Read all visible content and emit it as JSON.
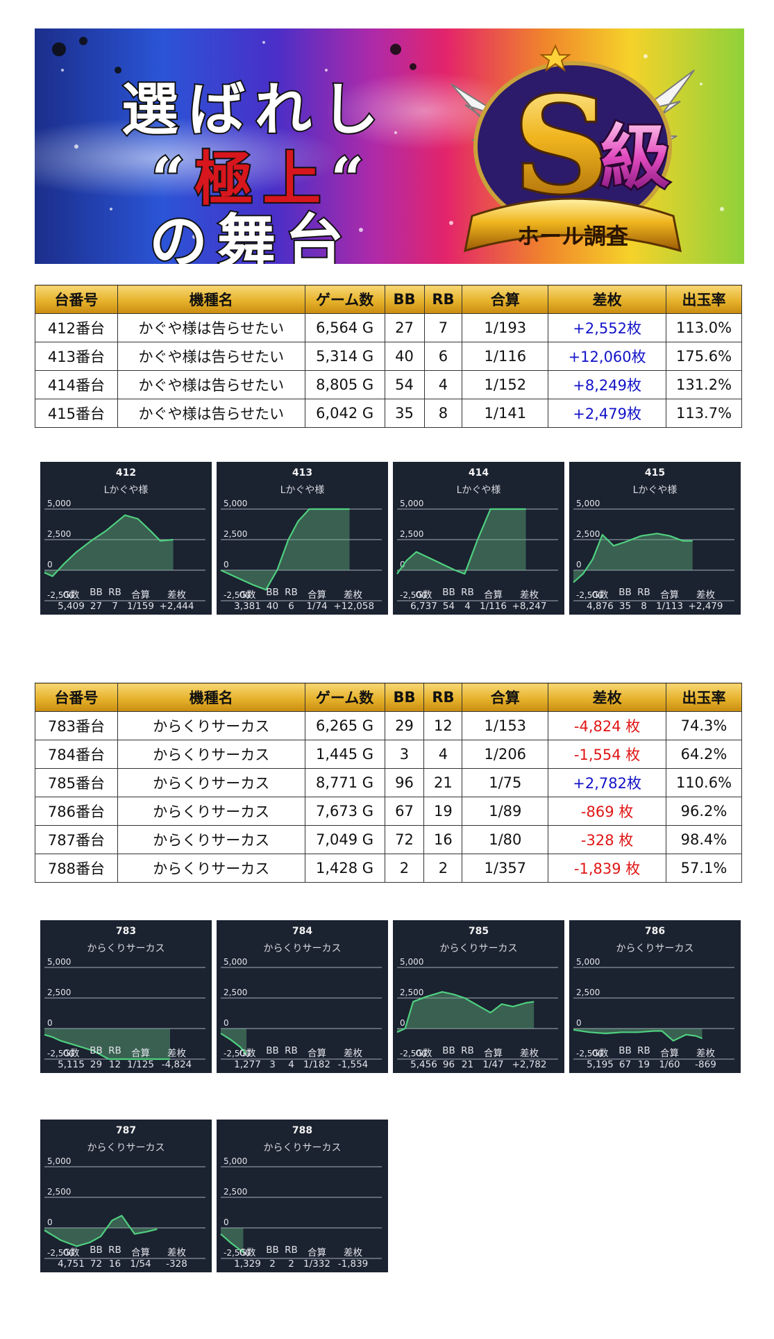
{
  "banner": {
    "line1": "選ばれし",
    "line2_open": "“",
    "line2_main": "極上",
    "line2_close": "“",
    "line3": "の舞台",
    "badge_letters": "S級",
    "badge_ribbon": "ホール調査"
  },
  "table_headers": [
    "台番号",
    "機種名",
    "ゲーム数",
    "BB",
    "RB",
    "合算",
    "差枚",
    "出玉率"
  ],
  "table1": [
    {
      "no": "412番台",
      "model": "かぐや様は告らせたい",
      "games": "6,564 G",
      "bb": "27",
      "rb": "7",
      "total": "1/193",
      "diff": "+2,552枚",
      "sign": "pos",
      "rate": "113.0%"
    },
    {
      "no": "413番台",
      "model": "かぐや様は告らせたい",
      "games": "5,314 G",
      "bb": "40",
      "rb": "6",
      "total": "1/116",
      "diff": "+12,060枚",
      "sign": "pos",
      "rate": "175.6%"
    },
    {
      "no": "414番台",
      "model": "かぐや様は告らせたい",
      "games": "8,805 G",
      "bb": "54",
      "rb": "4",
      "total": "1/152",
      "diff": "+8,249枚",
      "sign": "pos",
      "rate": "131.2%"
    },
    {
      "no": "415番台",
      "model": "かぐや様は告らせたい",
      "games": "6,042 G",
      "bb": "35",
      "rb": "8",
      "total": "1/141",
      "diff": "+2,479枚",
      "sign": "pos",
      "rate": "113.7%"
    }
  ],
  "table2": [
    {
      "no": "783番台",
      "model": "からくりサーカス",
      "games": "6,265 G",
      "bb": "29",
      "rb": "12",
      "total": "1/153",
      "diff": "-4,824 枚",
      "sign": "neg",
      "rate": "74.3%"
    },
    {
      "no": "784番台",
      "model": "からくりサーカス",
      "games": "1,445 G",
      "bb": "3",
      "rb": "4",
      "total": "1/206",
      "diff": "-1,554 枚",
      "sign": "neg",
      "rate": "64.2%"
    },
    {
      "no": "785番台",
      "model": "からくりサーカス",
      "games": "8,771 G",
      "bb": "96",
      "rb": "21",
      "total": "1/75",
      "diff": "+2,782枚",
      "sign": "pos",
      "rate": "110.6%"
    },
    {
      "no": "786番台",
      "model": "からくりサーカス",
      "games": "7,673 G",
      "bb": "67",
      "rb": "19",
      "total": "1/89",
      "diff": "-869 枚",
      "sign": "neg",
      "rate": "96.2%"
    },
    {
      "no": "787番台",
      "model": "からくりサーカス",
      "games": "7,049 G",
      "bb": "72",
      "rb": "16",
      "total": "1/80",
      "diff": "-328 枚",
      "sign": "neg",
      "rate": "98.4%"
    },
    {
      "no": "788番台",
      "model": "からくりサーカス",
      "games": "1,428 G",
      "bb": "2",
      "rb": "2",
      "total": "1/357",
      "diff": "-1,839 枚",
      "sign": "neg",
      "rate": "57.1%"
    }
  ],
  "stat_labels": [
    "G数",
    "BB",
    "RB",
    "合算",
    "差枚"
  ],
  "chart_data": [
    {
      "type": "area",
      "title": "412",
      "subtitle": "Lかぐや様",
      "ylim": [
        -2500,
        5000
      ],
      "y_ticks": [
        "5,000",
        "2,500",
        "0",
        "-2,500"
      ],
      "x": [
        0,
        0.05,
        0.12,
        0.2,
        0.3,
        0.38,
        0.5,
        0.58,
        0.66,
        0.72,
        0.8
      ],
      "y": [
        -200,
        -500,
        500,
        1500,
        2500,
        3200,
        4500,
        4200,
        3200,
        2400,
        2500
      ],
      "stats": [
        "5,409",
        "27",
        "7",
        "1/159",
        "+2,444"
      ]
    },
    {
      "type": "area",
      "title": "413",
      "subtitle": "Lかぐや様",
      "ylim": [
        -2500,
        5000
      ],
      "y_ticks": [
        "5,000",
        "2,500",
        "0",
        "-2,500"
      ],
      "x": [
        0,
        0.1,
        0.2,
        0.28,
        0.35,
        0.42,
        0.48,
        0.55,
        0.6,
        0.7,
        0.8
      ],
      "y": [
        0,
        -600,
        -1200,
        -1600,
        0,
        2500,
        4000,
        5000,
        5000,
        5000,
        5000
      ],
      "stats": [
        "3,381",
        "40",
        "6",
        "1/74",
        "+12,058"
      ]
    },
    {
      "type": "area",
      "title": "414",
      "subtitle": "Lかぐや様",
      "ylim": [
        -2500,
        5000
      ],
      "y_ticks": [
        "5,000",
        "2,500",
        "0",
        "-2,500"
      ],
      "x": [
        0,
        0.06,
        0.12,
        0.2,
        0.28,
        0.36,
        0.42,
        0.5,
        0.58,
        0.68,
        0.8
      ],
      "y": [
        -300,
        800,
        1500,
        1000,
        500,
        0,
        -300,
        2500,
        5000,
        5000,
        5000
      ],
      "stats": [
        "6,737",
        "54",
        "4",
        "1/116",
        "+8,247"
      ]
    },
    {
      "type": "area",
      "title": "415",
      "subtitle": "Lかぐや様",
      "ylim": [
        -2500,
        5000
      ],
      "y_ticks": [
        "5,000",
        "2,500",
        "0",
        "-2,500"
      ],
      "x": [
        0,
        0.06,
        0.12,
        0.18,
        0.25,
        0.32,
        0.42,
        0.52,
        0.6,
        0.68,
        0.74
      ],
      "y": [
        -1000,
        -300,
        900,
        2900,
        2000,
        2300,
        2800,
        3000,
        2800,
        2400,
        2400
      ],
      "stats": [
        "4,876",
        "35",
        "8",
        "1/113",
        "+2,479"
      ]
    },
    {
      "type": "area",
      "title": "783",
      "subtitle": "からくりサーカス",
      "ylim": [
        -2500,
        5000
      ],
      "y_ticks": [
        "5,000",
        "2,500",
        "0",
        "-2,500"
      ],
      "x": [
        0,
        0.05,
        0.1,
        0.2,
        0.3,
        0.4,
        0.5,
        0.6,
        0.7,
        0.78
      ],
      "y": [
        -500,
        -700,
        -1000,
        -1400,
        -1800,
        -2500,
        -2500,
        -2500,
        -2500,
        -2500
      ],
      "stats": [
        "5,115",
        "29",
        "12",
        "1/125",
        "-4,824"
      ]
    },
    {
      "type": "area",
      "title": "784",
      "subtitle": "からくりサーカス",
      "ylim": [
        -2500,
        5000
      ],
      "y_ticks": [
        "5,000",
        "2,500",
        "0",
        "-2,500"
      ],
      "x": [
        0,
        0.06,
        0.12,
        0.16
      ],
      "y": [
        -400,
        -900,
        -1500,
        -2100
      ],
      "stats": [
        "1,277",
        "3",
        "4",
        "1/182",
        "-1,554"
      ]
    },
    {
      "type": "area",
      "title": "785",
      "subtitle": "からくりサーカス",
      "ylim": [
        -2500,
        5000
      ],
      "y_ticks": [
        "5,000",
        "2,500",
        "0",
        "-2,500"
      ],
      "x": [
        0,
        0.05,
        0.1,
        0.18,
        0.28,
        0.35,
        0.42,
        0.5,
        0.58,
        0.65,
        0.72,
        0.8,
        0.85
      ],
      "y": [
        -300,
        0,
        2200,
        2600,
        3000,
        2800,
        2500,
        1900,
        1300,
        2000,
        1800,
        2100,
        2200
      ],
      "stats": [
        "5,456",
        "96",
        "21",
        "1/47",
        "+2,782"
      ]
    },
    {
      "type": "area",
      "title": "786",
      "subtitle": "からくりサーカス",
      "ylim": [
        -2500,
        5000
      ],
      "y_ticks": [
        "5,000",
        "2,500",
        "0",
        "-2,500"
      ],
      "x": [
        0,
        0.1,
        0.2,
        0.3,
        0.4,
        0.5,
        0.55,
        0.62,
        0.7,
        0.76,
        0.8
      ],
      "y": [
        -100,
        -300,
        -400,
        -300,
        -300,
        -200,
        -200,
        -1000,
        -500,
        -600,
        -800
      ],
      "stats": [
        "5,195",
        "67",
        "19",
        "1/60",
        "-869"
      ]
    },
    {
      "type": "area",
      "title": "787",
      "subtitle": "からくりサーカス",
      "ylim": [
        -2500,
        5000
      ],
      "y_ticks": [
        "5,000",
        "2,500",
        "0",
        "-2,500"
      ],
      "x": [
        0,
        0.1,
        0.2,
        0.28,
        0.35,
        0.42,
        0.48,
        0.56,
        0.64,
        0.7
      ],
      "y": [
        -200,
        -1000,
        -1500,
        -1200,
        -700,
        600,
        1000,
        -500,
        -300,
        -100
      ],
      "stats": [
        "4,751",
        "72",
        "16",
        "1/54",
        "-328"
      ]
    },
    {
      "type": "area",
      "title": "788",
      "subtitle": "からくりサーカス",
      "ylim": [
        -2500,
        5000
      ],
      "y_ticks": [
        "5,000",
        "2,500",
        "0",
        "-2,500"
      ],
      "x": [
        0,
        0.06,
        0.14
      ],
      "y": [
        -500,
        -1200,
        -2000
      ],
      "stats": [
        "1,329",
        "2",
        "2",
        "1/332",
        "-1,839"
      ]
    }
  ]
}
